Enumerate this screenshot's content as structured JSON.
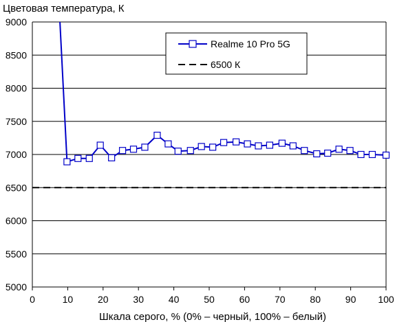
{
  "chart_data": {
    "type": "line",
    "title": "",
    "ylabel": "Цветовая температура, К",
    "xlabel": "Шкала серого, % (0% – черный, 100% – белый)",
    "xlim": [
      0,
      100
    ],
    "ylim": [
      5000,
      9000
    ],
    "x_ticks": [
      0,
      10,
      20,
      30,
      40,
      50,
      60,
      70,
      80,
      90,
      100
    ],
    "y_ticks": [
      5000,
      5500,
      6000,
      6500,
      7000,
      7500,
      8000,
      8500,
      9000
    ],
    "grid": "horizontal",
    "legend_position": "top-right",
    "series": [
      {
        "name": "Realme 10 Pro 5G",
        "color": "#0000c8",
        "marker": "square",
        "x": [
          7.8,
          9.8,
          12.9,
          16.1,
          19.2,
          22.4,
          25.5,
          28.6,
          31.8,
          35.3,
          38.4,
          41.2,
          44.7,
          47.8,
          51.0,
          54.1,
          57.6,
          60.8,
          63.9,
          67.1,
          70.6,
          73.7,
          76.9,
          80.4,
          83.5,
          86.7,
          89.8,
          92.9,
          96.1,
          100
        ],
        "y": [
          9000,
          6890,
          6940,
          6940,
          7140,
          6950,
          7060,
          7080,
          7110,
          7290,
          7160,
          7050,
          7060,
          7120,
          7110,
          7180,
          7190,
          7160,
          7130,
          7140,
          7170,
          7130,
          7060,
          7010,
          7020,
          7080,
          7060,
          7000,
          7000,
          6990
        ],
        "marker_from_index": 1
      },
      {
        "name": "6500 К",
        "color": "#000000",
        "style": "dashed",
        "x": [
          0,
          100
        ],
        "y": [
          6500,
          6500
        ]
      }
    ]
  }
}
